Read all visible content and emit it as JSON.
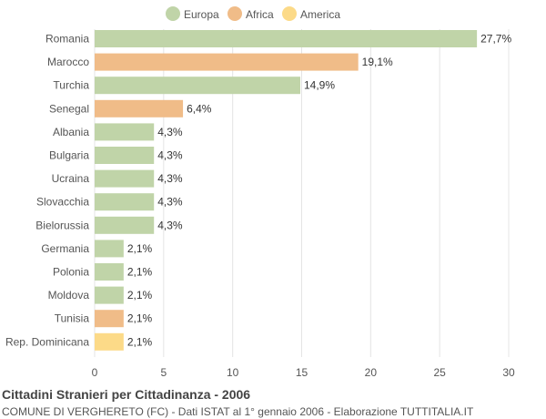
{
  "chart_data": {
    "type": "bar",
    "orientation": "horizontal",
    "title": "Cittadini Stranieri per Cittadinanza - 2006",
    "subtitle": "COMUNE DI VERGHERETO (FC) - Dati ISTAT al 1° gennaio 2006 - Elaborazione TUTTITALIA.IT",
    "xlim": [
      0,
      30
    ],
    "xticks": [
      0,
      5,
      10,
      15,
      20,
      25,
      30
    ],
    "grid": true,
    "legend_position": "top-center",
    "legend": [
      {
        "name": "Europa",
        "color": "#c0d4a8"
      },
      {
        "name": "Africa",
        "color": "#f0bc88"
      },
      {
        "name": "America",
        "color": "#fcda88"
      }
    ],
    "categories": [
      "Romania",
      "Marocco",
      "Turchia",
      "Senegal",
      "Albania",
      "Bulgaria",
      "Ucraina",
      "Slovacchia",
      "Bielorussia",
      "Germania",
      "Polonia",
      "Moldova",
      "Tunisia",
      "Rep. Dominicana"
    ],
    "values": [
      27.7,
      19.1,
      14.9,
      6.4,
      4.3,
      4.3,
      4.3,
      4.3,
      4.3,
      2.1,
      2.1,
      2.1,
      2.1,
      2.1
    ],
    "labels": [
      "27,7%",
      "19,1%",
      "14,9%",
      "6,4%",
      "4,3%",
      "4,3%",
      "4,3%",
      "4,3%",
      "4,3%",
      "2,1%",
      "2,1%",
      "2,1%",
      "2,1%",
      "2,1%"
    ],
    "groups": [
      "Europa",
      "Africa",
      "Europa",
      "Africa",
      "Europa",
      "Europa",
      "Europa",
      "Europa",
      "Europa",
      "Europa",
      "Europa",
      "Europa",
      "Africa",
      "America"
    ]
  }
}
